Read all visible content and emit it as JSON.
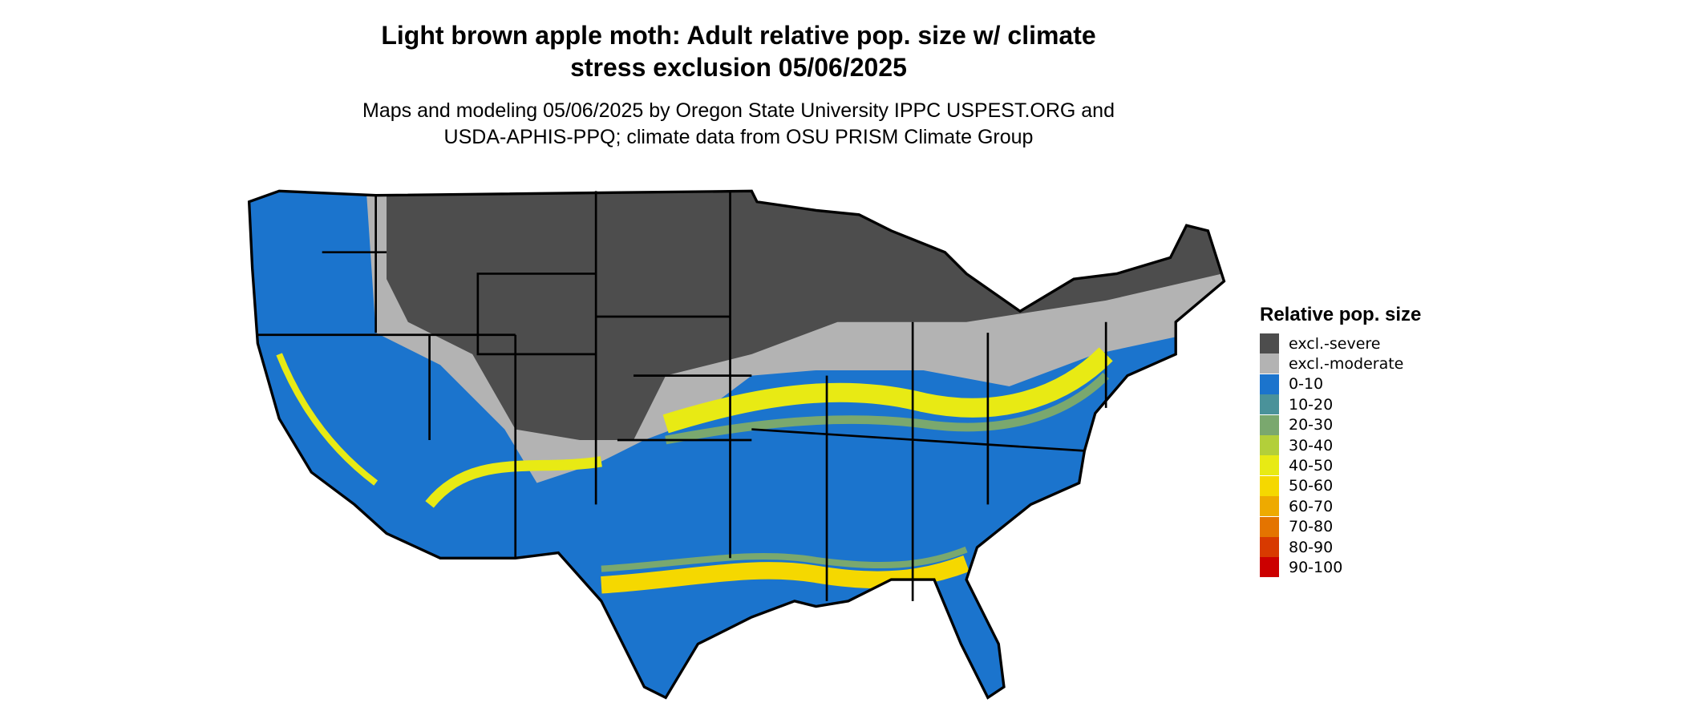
{
  "title": [
    "Light brown apple moth: Adult relative pop. size w/ climate",
    "stress exclusion 05/06/2025"
  ],
  "subtitle": [
    "Maps and modeling 05/06/2025 by Oregon State University IPPC USPEST.ORG and",
    "USDA-APHIS-PPQ; climate data from OSU PRISM Climate Group"
  ],
  "legend": {
    "title": "Relative pop. size",
    "items": [
      {
        "label": "excl.-severe",
        "color": "#4d4d4d"
      },
      {
        "label": "excl.-moderate",
        "color": "#b3b3b3"
      },
      {
        "label": "0-10",
        "color": "#1b74cd"
      },
      {
        "label": "10-20",
        "color": "#4a929a"
      },
      {
        "label": "20-30",
        "color": "#7aa86e"
      },
      {
        "label": "30-40",
        "color": "#b3cf3a"
      },
      {
        "label": "40-50",
        "color": "#e8ea14"
      },
      {
        "label": "50-60",
        "color": "#f5d800"
      },
      {
        "label": "60-70",
        "color": "#eeaa00"
      },
      {
        "label": "70-80",
        "color": "#e47400"
      },
      {
        "label": "80-90",
        "color": "#d83a00"
      },
      {
        "label": "90-100",
        "color": "#cc0000"
      }
    ]
  }
}
